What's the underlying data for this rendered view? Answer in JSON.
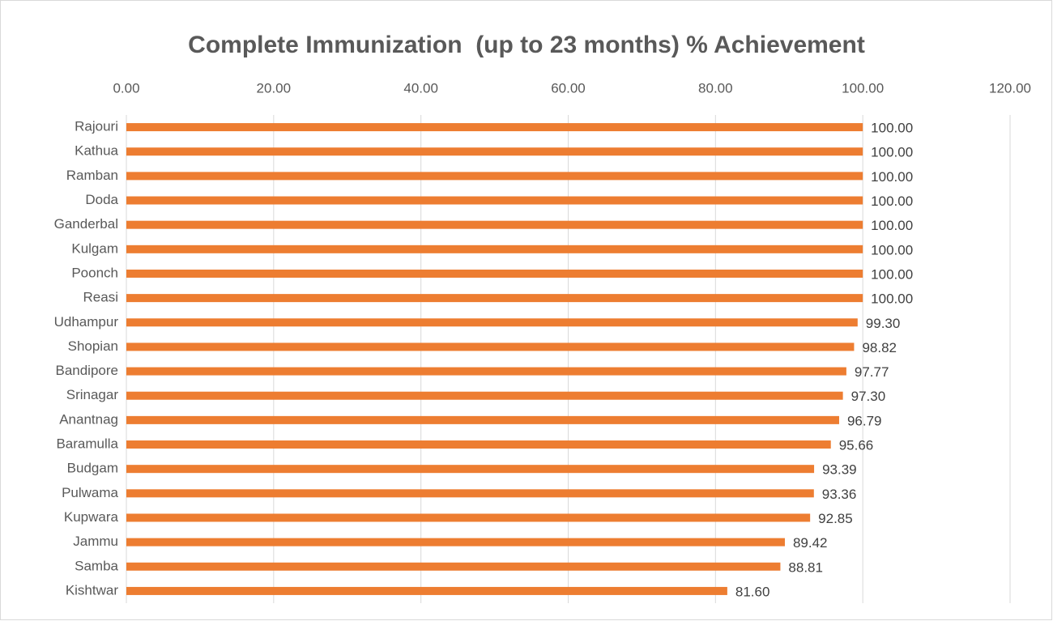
{
  "chart_data": {
    "type": "bar",
    "orientation": "horizontal",
    "title": "Complete Immunization  (up to 23 months) % Achievement",
    "categories": [
      "Rajouri",
      "Kathua",
      "Ramban",
      "Doda",
      "Ganderbal",
      "Kulgam",
      "Poonch",
      "Reasi",
      "Udhampur",
      "Shopian",
      "Bandipore",
      "Srinagar",
      "Anantnag",
      "Baramulla",
      "Budgam",
      "Pulwama",
      "Kupwara",
      "Jammu",
      "Samba",
      "Kishtwar"
    ],
    "values": [
      100,
      100,
      100,
      100,
      100,
      100,
      100,
      100,
      99.3,
      98.82,
      97.77,
      97.3,
      96.79,
      95.66,
      93.39,
      93.36,
      92.85,
      89.42,
      88.81,
      81.6
    ],
    "value_labels": [
      "100.00",
      "100.00",
      "100.00",
      "100.00",
      "100.00",
      "100.00",
      "100.00",
      "100.00",
      "99.30",
      "98.82",
      "97.77",
      "97.30",
      "96.79",
      "95.66",
      "93.39",
      "93.36",
      "92.85",
      "89.42",
      "88.81",
      "81.60"
    ],
    "color": "#ed7d31",
    "xlim": [
      0,
      120
    ],
    "xticks": [
      {
        "value": 0,
        "label": "0.00"
      },
      {
        "value": 20,
        "label": "20.00"
      },
      {
        "value": 40,
        "label": "40.00"
      },
      {
        "value": 60,
        "label": "60.00"
      },
      {
        "value": 80,
        "label": "80.00"
      },
      {
        "value": 100,
        "label": "100.00"
      },
      {
        "value": 120,
        "label": "120.00"
      }
    ],
    "grid": true
  }
}
